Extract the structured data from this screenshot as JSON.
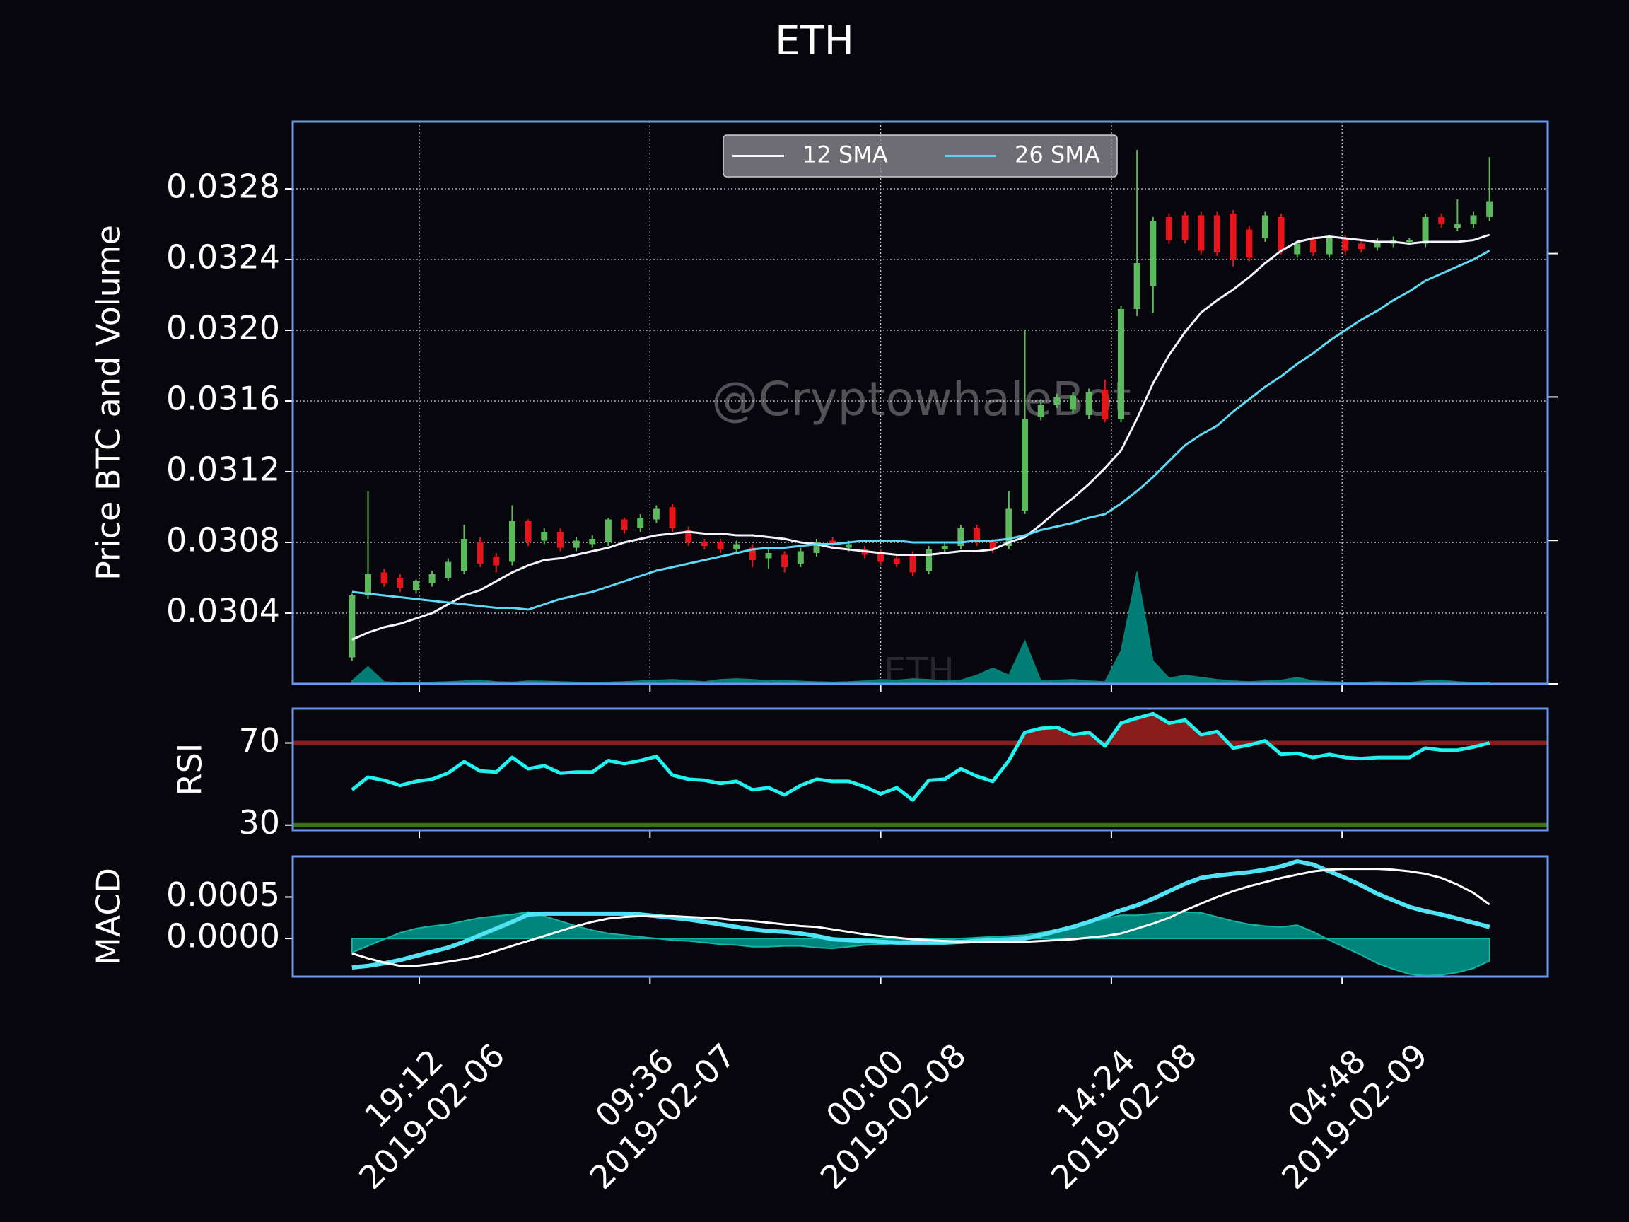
{
  "title": "ETH",
  "watermark": "@CryptowhaleBot",
  "watermark_label": "ETH",
  "chart_data": [
    {
      "type": "candlestick",
      "ylabel": "Price BTC and Volume",
      "grid": true,
      "legend": "upper center",
      "up_color": "#5cb85c",
      "down_color": "#e8141c",
      "xlim": [
        "2019-02-06T11:18",
        "2019-02-09T17:38"
      ],
      "xticks": [
        {
          "value": "2019-02-06T19:12",
          "label": [
            "19:12",
            "2019-02-06"
          ]
        },
        {
          "value": "2019-02-07T09:36",
          "label": [
            "09:36",
            "2019-02-07"
          ]
        },
        {
          "value": "2019-02-08T00:00",
          "label": [
            "00:00",
            "2019-02-08"
          ]
        },
        {
          "value": "2019-02-08T14:24",
          "label": [
            "14:24",
            "2019-02-08"
          ]
        },
        {
          "value": "2019-02-09T04:48",
          "label": [
            "04:48",
            "2019-02-09"
          ]
        }
      ],
      "ylim": [
        0.03,
        0.03318
      ],
      "yticks": [
        0.0304,
        0.0308,
        0.0312,
        0.0316,
        {
          "value": 0.032,
          "label": "0.0320"
        },
        0.0324,
        0.0328
      ],
      "y2lim": [
        0,
        3920
      ],
      "y2ticks": [
        0,
        1000,
        2000,
        3000
      ],
      "x": [
        "2019-02-06T15:00",
        "2019-02-06T16:00",
        "2019-02-06T17:00",
        "2019-02-06T18:00",
        "2019-02-06T19:00",
        "2019-02-06T20:00",
        "2019-02-06T21:00",
        "2019-02-06T22:00",
        "2019-02-06T23:00",
        "2019-02-07T00:00",
        "2019-02-07T01:00",
        "2019-02-07T02:00",
        "2019-02-07T03:00",
        "2019-02-07T04:00",
        "2019-02-07T05:00",
        "2019-02-07T06:00",
        "2019-02-07T07:00",
        "2019-02-07T08:00",
        "2019-02-07T09:00",
        "2019-02-07T10:00",
        "2019-02-07T11:00",
        "2019-02-07T12:00",
        "2019-02-07T13:00",
        "2019-02-07T14:00",
        "2019-02-07T15:00",
        "2019-02-07T16:00",
        "2019-02-07T17:00",
        "2019-02-07T18:00",
        "2019-02-07T19:00",
        "2019-02-07T20:00",
        "2019-02-07T21:00",
        "2019-02-07T22:00",
        "2019-02-07T23:00",
        "2019-02-08T00:00",
        "2019-02-08T01:00",
        "2019-02-08T02:00",
        "2019-02-08T03:00",
        "2019-02-08T04:00",
        "2019-02-08T05:00",
        "2019-02-08T06:00",
        "2019-02-08T07:00",
        "2019-02-08T08:00",
        "2019-02-08T09:00",
        "2019-02-08T10:00",
        "2019-02-08T11:00",
        "2019-02-08T12:00",
        "2019-02-08T13:00",
        "2019-02-08T14:00",
        "2019-02-08T15:00",
        "2019-02-08T16:00",
        "2019-02-08T17:00",
        "2019-02-08T18:00",
        "2019-02-08T19:00",
        "2019-02-08T20:00",
        "2019-02-08T21:00",
        "2019-02-08T22:00",
        "2019-02-08T23:00",
        "2019-02-09T00:00",
        "2019-02-09T01:00",
        "2019-02-09T02:00",
        "2019-02-09T03:00",
        "2019-02-09T04:00",
        "2019-02-09T05:00",
        "2019-02-09T06:00",
        "2019-02-09T07:00",
        "2019-02-09T08:00",
        "2019-02-09T09:00",
        "2019-02-09T10:00",
        "2019-02-09T11:00",
        "2019-02-09T12:00",
        "2019-02-09T13:00",
        "2019-02-09T14:00"
      ],
      "open": [
        0.03015,
        0.0305,
        0.03063,
        0.0306,
        0.03053,
        0.03057,
        0.0306,
        0.03064,
        0.0308,
        0.03072,
        0.03069,
        0.03092,
        0.03081,
        0.03086,
        0.03077,
        0.03079,
        0.0308,
        0.03093,
        0.03088,
        0.03093,
        0.031,
        0.03087,
        0.0308,
        0.0308,
        0.03076,
        0.03077,
        0.03071,
        0.03073,
        0.03068,
        0.03074,
        0.03081,
        0.03077,
        0.03076,
        0.03074,
        0.03071,
        0.03073,
        0.03064,
        0.03076,
        0.03078,
        0.03088,
        0.0308,
        0.03078,
        0.03098,
        0.03151,
        0.03158,
        0.03155,
        0.03152,
        0.03166,
        0.0315,
        0.03212,
        0.03225,
        0.03264,
        0.03265,
        0.03265,
        0.03265,
        0.03266,
        0.03257,
        0.03252,
        0.03264,
        0.03243,
        0.03251,
        0.03243,
        0.03252,
        0.03249,
        0.03247,
        0.03249,
        0.0325,
        0.03249,
        0.03264,
        0.03258,
        0.0326,
        0.03264
      ],
      "high": [
        0.03051,
        0.03109,
        0.03065,
        0.03062,
        0.03059,
        0.03064,
        0.03071,
        0.0309,
        0.03083,
        0.03074,
        0.03101,
        0.03093,
        0.03088,
        0.03088,
        0.03083,
        0.03084,
        0.03094,
        0.03094,
        0.03096,
        0.03101,
        0.03102,
        0.03089,
        0.03082,
        0.03082,
        0.03081,
        0.03079,
        0.03076,
        0.03075,
        0.03077,
        0.03082,
        0.03083,
        0.03081,
        0.03078,
        0.03076,
        0.03073,
        0.03075,
        0.03078,
        0.0308,
        0.0309,
        0.0309,
        0.03082,
        0.03109,
        0.032,
        0.03161,
        0.03164,
        0.03165,
        0.03167,
        0.03172,
        0.03214,
        0.03302,
        0.03264,
        0.03266,
        0.03267,
        0.03267,
        0.03267,
        0.03268,
        0.03259,
        0.03267,
        0.03266,
        0.03251,
        0.03253,
        0.03254,
        0.03254,
        0.03251,
        0.03252,
        0.03253,
        0.03252,
        0.03266,
        0.03266,
        0.03274,
        0.03267,
        0.03298
      ],
      "low": [
        0.03013,
        0.03048,
        0.03055,
        0.03052,
        0.03051,
        0.03055,
        0.03058,
        0.03062,
        0.03066,
        0.03063,
        0.03067,
        0.03078,
        0.03079,
        0.03075,
        0.03075,
        0.03077,
        0.03078,
        0.03085,
        0.03086,
        0.03091,
        0.03086,
        0.03078,
        0.03076,
        0.03074,
        0.03074,
        0.03066,
        0.03065,
        0.03063,
        0.03066,
        0.03072,
        0.03077,
        0.03075,
        0.03071,
        0.03067,
        0.03066,
        0.03061,
        0.03062,
        0.03074,
        0.03076,
        0.03078,
        0.03074,
        0.03076,
        0.03096,
        0.03149,
        0.03156,
        0.03153,
        0.0315,
        0.03148,
        0.03148,
        0.03208,
        0.0321,
        0.03249,
        0.03249,
        0.03243,
        0.03242,
        0.03236,
        0.03239,
        0.0325,
        0.03243,
        0.03241,
        0.03242,
        0.03241,
        0.03243,
        0.03244,
        0.03245,
        0.03247,
        0.03248,
        0.03247,
        0.03258,
        0.03256,
        0.03258,
        0.03262
      ],
      "close": [
        0.0305,
        0.03062,
        0.03057,
        0.03054,
        0.03058,
        0.03062,
        0.03069,
        0.03082,
        0.03068,
        0.03067,
        0.03092,
        0.0308,
        0.03086,
        0.03077,
        0.03081,
        0.03082,
        0.03093,
        0.03087,
        0.03094,
        0.03099,
        0.03088,
        0.0308,
        0.03078,
        0.03076,
        0.03079,
        0.0307,
        0.03074,
        0.03066,
        0.03075,
        0.0308,
        0.03079,
        0.03079,
        0.03073,
        0.03069,
        0.03068,
        0.03063,
        0.03076,
        0.03078,
        0.03088,
        0.0308,
        0.03076,
        0.03099,
        0.0315,
        0.03158,
        0.03162,
        0.03163,
        0.03165,
        0.0315,
        0.03212,
        0.03238,
        0.03262,
        0.03251,
        0.03251,
        0.03245,
        0.03244,
        0.0324,
        0.03241,
        0.03265,
        0.03245,
        0.03249,
        0.03244,
        0.03252,
        0.03245,
        0.03246,
        0.0325,
        0.03251,
        0.03251,
        0.03264,
        0.0326,
        0.0326,
        0.03265,
        0.03273
      ],
      "series": [
        {
          "name": "12 SMA",
          "color": "#f4f4ff",
          "values": [
            0.03025,
            0.03029,
            0.03032,
            0.03034,
            0.03037,
            0.0304,
            0.03045,
            0.0305,
            0.03053,
            0.03058,
            0.03063,
            0.03067,
            0.0307,
            0.03071,
            0.03073,
            0.03075,
            0.03077,
            0.0308,
            0.03082,
            0.03084,
            0.03085,
            0.03086,
            0.03085,
            0.03085,
            0.03084,
            0.03084,
            0.03083,
            0.03082,
            0.0308,
            0.03079,
            0.03077,
            0.03076,
            0.03075,
            0.03074,
            0.03073,
            0.03073,
            0.03073,
            0.03074,
            0.03075,
            0.03075,
            0.03076,
            0.0308,
            0.03083,
            0.0309,
            0.03098,
            0.03105,
            0.03113,
            0.03122,
            0.03132,
            0.0315,
            0.0317,
            0.03186,
            0.03199,
            0.0321,
            0.03217,
            0.03223,
            0.0323,
            0.03238,
            0.03245,
            0.0325,
            0.03252,
            0.03253,
            0.03252,
            0.03251,
            0.0325,
            0.0325,
            0.03249,
            0.0325,
            0.0325,
            0.0325,
            0.03251,
            0.03254
          ]
        },
        {
          "name": "26 SMA",
          "color": "#5cd9f5",
          "values": [
            0.03052,
            0.03051,
            0.0305,
            0.03049,
            0.03048,
            0.03047,
            0.03046,
            0.03045,
            0.03044,
            0.03043,
            0.03043,
            0.03042,
            0.03045,
            0.03048,
            0.0305,
            0.03052,
            0.03055,
            0.03058,
            0.03061,
            0.03064,
            0.03066,
            0.03068,
            0.0307,
            0.03072,
            0.03074,
            0.03076,
            0.03077,
            0.03077,
            0.03078,
            0.03079,
            0.03079,
            0.0308,
            0.03081,
            0.03081,
            0.03081,
            0.0308,
            0.0308,
            0.0308,
            0.0308,
            0.03081,
            0.03081,
            0.03082,
            0.03084,
            0.03087,
            0.03089,
            0.03091,
            0.03094,
            0.03096,
            0.03102,
            0.03109,
            0.03117,
            0.03126,
            0.03135,
            0.03141,
            0.03146,
            0.03154,
            0.03161,
            0.03168,
            0.03174,
            0.03181,
            0.03187,
            0.03194,
            0.032,
            0.03206,
            0.03211,
            0.03217,
            0.03222,
            0.03228,
            0.03232,
            0.03236,
            0.0324,
            0.03245
          ]
        }
      ],
      "volume": {
        "axis": "y2",
        "color": "#00857c",
        "values": [
          20,
          120,
          15,
          10,
          10,
          12,
          15,
          20,
          25,
          15,
          12,
          20,
          18,
          15,
          12,
          10,
          12,
          15,
          20,
          25,
          30,
          22,
          15,
          30,
          35,
          30,
          20,
          25,
          18,
          15,
          12,
          15,
          20,
          30,
          25,
          35,
          30,
          20,
          25,
          60,
          110,
          60,
          300,
          20,
          25,
          30,
          20,
          15,
          230,
          780,
          160,
          40,
          60,
          45,
          30,
          20,
          15,
          20,
          25,
          45,
          20,
          15,
          12,
          10,
          15,
          12,
          10,
          20,
          25,
          15,
          10,
          12
        ]
      }
    },
    {
      "type": "line",
      "ylabel": "RSI",
      "ylim": [
        27.5,
        86.7
      ],
      "yticks": [
        30,
        70
      ],
      "ytick_line_colors": [
        "#3c6e1e",
        "#8b1c1c"
      ],
      "overbought_fill": "#8b1c1c",
      "series": [
        {
          "color": "#1ff2ef",
          "values": [
            47.2,
            53.3,
            51.8,
            49.3,
            51.3,
            52.3,
            55.3,
            60.9,
            56.3,
            55.8,
            62.9,
            57.4,
            58.9,
            55.3,
            55.8,
            55.8,
            61.4,
            59.9,
            61.4,
            63.4,
            54.3,
            52.3,
            51.8,
            50.3,
            51.3,
            47.2,
            48.2,
            44.7,
            49.3,
            52.3,
            51.3,
            51.3,
            48.7,
            45.2,
            48.2,
            42.2,
            51.8,
            52.3,
            57.4,
            53.8,
            51.3,
            61.4,
            75.1,
            77.1,
            77.6,
            74,
            75.1,
            68.5,
            79.6,
            82.1,
            84.2,
            79.6,
            81.1,
            74,
            75.6,
            67.5,
            69,
            71,
            64.4,
            64.9,
            62.9,
            64.4,
            62.9,
            62.4,
            62.9,
            62.9,
            62.9,
            67.5,
            66.5,
            66.5,
            68,
            70
          ]
        }
      ]
    },
    {
      "type": "line",
      "ylabel": "MACD",
      "ylim": [
        -0.00046,
        0.00099
      ],
      "yticks": [
        {
          "value": 0,
          "label": "0.0000"
        },
        0.0005
      ],
      "series": [
        {
          "color": "#4fe3f5",
          "values": [
            -0.00035,
            -0.00033,
            -0.0003,
            -0.00026,
            -0.00021,
            -0.00016,
            -0.00011,
            -4e-05,
            4e-05,
            0.00012,
            0.0002,
            0.00029,
            0.0003,
            0.0003,
            0.0003,
            0.0003,
            0.0003,
            0.0003,
            0.00029,
            0.00027,
            0.00025,
            0.00023,
            0.0002,
            0.00017,
            0.00014,
            0.00011,
            9e-05,
            8e-05,
            6e-05,
            3e-05,
            -1e-05,
            -2e-05,
            -3e-05,
            -4e-05,
            -5e-05,
            -5e-05,
            -5e-05,
            -5e-05,
            -4e-05,
            -3e-05,
            -2e-05,
            -1e-05,
            0,
            4e-05,
            9e-05,
            0.00014,
            0.0002,
            0.00027,
            0.00034,
            0.0004,
            0.00048,
            0.00057,
            0.00066,
            0.00073,
            0.00076,
            0.00078,
            0.0008,
            0.00083,
            0.00087,
            0.00093,
            0.00089,
            0.00081,
            0.00073,
            0.00064,
            0.00054,
            0.00046,
            0.00038,
            0.00033,
            0.00029,
            0.00024,
            0.00019,
            0.00014
          ]
        },
        {
          "color": "#ffffff",
          "values": [
            -0.00018,
            -0.00024,
            -0.00029,
            -0.00033,
            -0.00033,
            -0.00031,
            -0.00028,
            -0.00025,
            -0.00021,
            -0.00015,
            -9e-05,
            -3e-05,
            3e-05,
            9e-05,
            0.00015,
            0.0002,
            0.00024,
            0.00026,
            0.00027,
            0.00027,
            0.00027,
            0.00026,
            0.00025,
            0.00024,
            0.00022,
            0.00021,
            0.00019,
            0.00017,
            0.00015,
            0.00014,
            0.00011,
            8e-05,
            5e-05,
            3e-05,
            1e-05,
            -1e-05,
            -2e-05,
            -3e-05,
            -4e-05,
            -4e-05,
            -4e-05,
            -4e-05,
            -4e-05,
            -3e-05,
            -2e-05,
            -1e-05,
            1e-05,
            3e-05,
            6e-05,
            0.00012,
            0.00018,
            0.00025,
            0.00034,
            0.00042,
            0.0005,
            0.00057,
            0.00063,
            0.00068,
            0.00073,
            0.00077,
            0.00081,
            0.00083,
            0.00084,
            0.00084,
            0.00084,
            0.00083,
            0.00081,
            0.00078,
            0.00073,
            0.00065,
            0.00055,
            0.00041
          ]
        }
      ],
      "histogram": {
        "color": "#00857c",
        "edge": "#12b5a5",
        "values": [
          -0.00017,
          -9e-05,
          -1e-05,
          7e-05,
          0.00012,
          0.00015,
          0.00017,
          0.00021,
          0.00025,
          0.00027,
          0.00029,
          0.00032,
          0.00027,
          0.00021,
          0.00015,
          0.0001,
          6e-05,
          4e-05,
          2e-05,
          0,
          -2e-05,
          -3e-05,
          -5e-05,
          -7e-05,
          -8e-05,
          -0.0001,
          -0.0001,
          -9e-05,
          -9e-05,
          -0.00011,
          -0.00012,
          -0.0001,
          -8e-05,
          -7e-05,
          -6e-05,
          -4e-05,
          -3e-05,
          -2e-05,
          0,
          1e-05,
          2e-05,
          3e-05,
          4e-05,
          7e-05,
          0.00011,
          0.00015,
          0.00019,
          0.00024,
          0.00028,
          0.00028,
          0.0003,
          0.00032,
          0.00032,
          0.00031,
          0.00026,
          0.00021,
          0.00017,
          0.00015,
          0.00014,
          0.00016,
          8e-05,
          -2e-05,
          -0.00011,
          -0.0002,
          -0.0003,
          -0.00037,
          -0.00043,
          -0.00045,
          -0.00044,
          -0.00041,
          -0.00036,
          -0.00027
        ]
      }
    }
  ]
}
